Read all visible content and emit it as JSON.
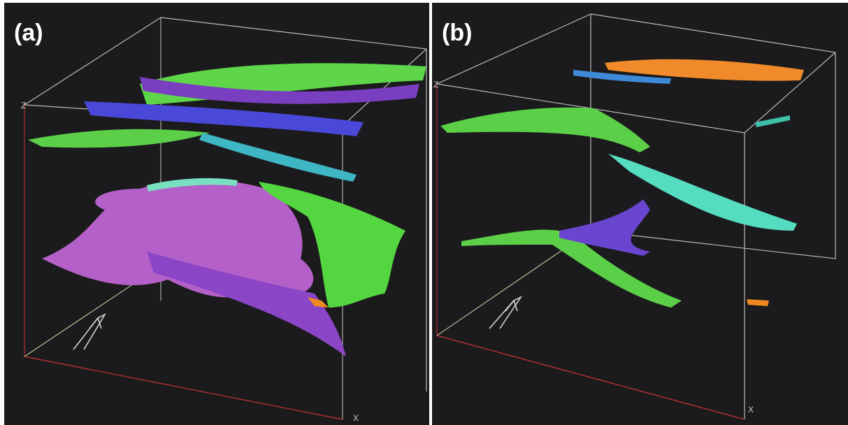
{
  "panels": [
    {
      "label": "(a)",
      "axis_z": "Z",
      "axis_x": "X"
    },
    {
      "label": "(b)",
      "axis_z": "Z",
      "axis_x": "X"
    }
  ]
}
